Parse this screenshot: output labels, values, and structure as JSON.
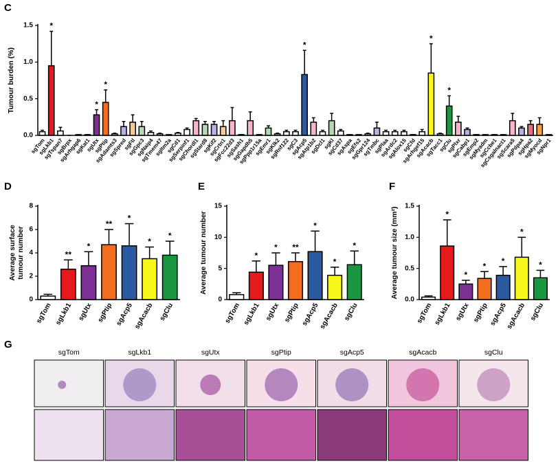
{
  "chart_data": [
    {
      "type": "bar",
      "panel": "C",
      "ylabel": [
        "Tumour burden (%)"
      ],
      "categories": [
        "sgTom",
        "sgLkb1",
        "sgTspan7",
        "sgBrpx",
        "sgArhgap6",
        "sgKat1",
        "sgUtx",
        "sgPtip",
        "sgAdamts3",
        "sgSpred",
        "sgFtl",
        "sgGpc3",
        "sgNaip4",
        "sgTmem47",
        "sgItm2a",
        "sgCd1",
        "sgSerpinf1",
        "sgChordl1",
        "sgStard8",
        "sgKif2",
        "sgCrtn1",
        "sgFcc22d3",
        "sgSash1",
        "sgGapdh5",
        "sgPpp1r15a",
        "sgEmr1",
        "sgKlk2",
        "sgRnf122",
        "sgC3",
        "sgAcp5",
        "sgAtp1b2",
        "sgDcl1",
        "sgKl",
        "sgCd37",
        "sgAspa",
        "sgEfs2",
        "sgGpr124",
        "sgTmbc",
        "sgPlaa",
        "sgArdc2",
        "sgAlox15",
        "sgCfd",
        "sgArhgef15",
        "sgAcacb",
        "sgTacc1",
        "sgClu",
        "sgPlxr",
        "sgCabp1",
        "sgEmp2",
        "sgMyadm",
        "sgCcbe1",
        "sgCsgalnact1",
        "sgScara5",
        "sgPdpa4",
        "sgHpa2",
        "sgMyocd",
        "sgNpr1"
      ],
      "values": [
        0.05,
        0.95,
        0.06,
        0,
        0.01,
        0.01,
        0.28,
        0.45,
        0.02,
        0.12,
        0.18,
        0.12,
        0.04,
        0.02,
        0.01,
        0.03,
        0.08,
        0.2,
        0.15,
        0.15,
        0.12,
        0.2,
        0.01,
        0.2,
        0.01,
        0.1,
        0.02,
        0.05,
        0.05,
        0.83,
        0.18,
        0.05,
        0.2,
        0.06,
        0.01,
        0.01,
        0.02,
        0.1,
        0.05,
        0.05,
        0.05,
        0.01,
        0.05,
        0.85,
        0.02,
        0.4,
        0.18,
        0.08,
        0.01,
        0.01,
        0.01,
        0.01,
        0.2,
        0.1,
        0.15,
        0.15,
        0.01
      ],
      "errors": [
        0.02,
        0.47,
        0.05,
        0,
        0,
        0,
        0.07,
        0.17,
        0.01,
        0.07,
        0.1,
        0.07,
        0.02,
        0.01,
        0,
        0.01,
        0.02,
        0.03,
        0.04,
        0.04,
        0.08,
        0.18,
        0,
        0.12,
        0,
        0.03,
        0.01,
        0.02,
        0.02,
        0.33,
        0.06,
        0.02,
        0.1,
        0.02,
        0,
        0,
        0.01,
        0.08,
        0.02,
        0.02,
        0.02,
        0,
        0.03,
        0.4,
        0.01,
        0.14,
        0.08,
        0.02,
        0,
        0,
        0,
        0,
        0.1,
        0.02,
        0.05,
        0.09,
        0
      ],
      "colors": [
        "#ffffff",
        "#e41a1c",
        "#ffffff",
        "#ffffff",
        "#ffffff",
        "#ffffff",
        "#7b3294",
        "#f46d1f",
        "#ffffff",
        "#b7b0e0",
        "#f7c89a",
        "#b3d9b3",
        "#ffffff",
        "#ffffff",
        "#ffffff",
        "#ffffff",
        "#ffffff",
        "#f4b6c8",
        "#b3d9b3",
        "#b7b0e0",
        "#f7c89a",
        "#f4b6c8",
        "#ffffff",
        "#f4b6c8",
        "#ffffff",
        "#b3d9b3",
        "#ffffff",
        "#ffffff",
        "#ffffff",
        "#2c5aa0",
        "#f4b6c8",
        "#ffffff",
        "#b3d9b3",
        "#ffffff",
        "#ffffff",
        "#ffffff",
        "#ffffff",
        "#b7b0e0",
        "#ffffff",
        "#ffffff",
        "#ffffff",
        "#ffffff",
        "#ffffff",
        "#f7f71a",
        "#ffffff",
        "#1a9641",
        "#f4b6c8",
        "#b7b0e0",
        "#ffffff",
        "#ffffff",
        "#ffffff",
        "#ffffff",
        "#f4b6c8",
        "#b7b0e0",
        "#e0707a",
        "#f7a040",
        "#ffffff"
      ],
      "significance": [
        null,
        "*",
        null,
        null,
        null,
        null,
        "*",
        "*",
        null,
        null,
        null,
        null,
        null,
        null,
        null,
        null,
        null,
        null,
        null,
        null,
        null,
        null,
        null,
        null,
        null,
        null,
        null,
        null,
        null,
        "*",
        null,
        null,
        null,
        null,
        null,
        null,
        null,
        null,
        null,
        null,
        null,
        null,
        null,
        "*",
        null,
        "*",
        null,
        null,
        null,
        null,
        null,
        null,
        null,
        null,
        null,
        null,
        null
      ],
      "ylim": [
        0,
        1.5
      ],
      "yticks": [
        {
          "value": 0,
          "label": "0.0"
        },
        0.5,
        {
          "value": 1,
          "label": "1.0"
        },
        1.5
      ]
    },
    {
      "type": "bar",
      "panel": "D",
      "ylabel": [
        "Average surface",
        "tumour number"
      ],
      "categories": [
        "sgTom",
        "sgLkb1",
        "sgUtx",
        "sgPtip",
        "sgAcp5",
        "sgAcacb",
        "sgClu"
      ],
      "values": [
        0.3,
        2.6,
        2.9,
        4.7,
        4.6,
        3.5,
        3.8
      ],
      "errors": [
        0.15,
        0.8,
        1.2,
        1.3,
        1.9,
        1.0,
        1.2
      ],
      "colors": [
        "#ffffff",
        "#e41a1c",
        "#7b3294",
        "#f46d1f",
        "#2c5aa0",
        "#f7f71a",
        "#1a9641"
      ],
      "significance": [
        null,
        "**",
        "*",
        "**",
        "*",
        "*",
        "*"
      ],
      "ylim": [
        0,
        8
      ],
      "yticks": [
        0,
        2,
        4,
        6,
        8
      ]
    },
    {
      "type": "bar",
      "panel": "E",
      "ylabel": [
        "Average tumour number"
      ],
      "categories": [
        "sgTom",
        "sgLkb1",
        "sgUtx",
        "sgPtip",
        "sgAcp5",
        "sgAcacb",
        "sgClu"
      ],
      "values": [
        0.8,
        4.4,
        5.5,
        6.1,
        7.7,
        3.9,
        5.6
      ],
      "errors": [
        0.3,
        1.8,
        2.0,
        1.4,
        3.3,
        1.3,
        2.2
      ],
      "colors": [
        "#ffffff",
        "#e41a1c",
        "#7b3294",
        "#f46d1f",
        "#2c5aa0",
        "#f7f71a",
        "#1a9641"
      ],
      "significance": [
        null,
        "*",
        "*",
        "**",
        "*",
        "*",
        "*"
      ],
      "ylim": [
        0,
        15
      ],
      "yticks": [
        0,
        5,
        10,
        15
      ]
    },
    {
      "type": "bar",
      "panel": "F",
      "ylabel": [
        "Average tumour size (mm²)"
      ],
      "categories": [
        "sgTom",
        "sgLkb1",
        "sgUtx",
        "sgPtip",
        "sgAcp5",
        "sgAcacb",
        "sgClu"
      ],
      "values": [
        0.04,
        0.86,
        0.25,
        0.34,
        0.39,
        0.68,
        0.35
      ],
      "errors": [
        0.02,
        0.42,
        0.06,
        0.11,
        0.14,
        0.32,
        0.12
      ],
      "colors": [
        "#ffffff",
        "#e41a1c",
        "#7b3294",
        "#f46d1f",
        "#2c5aa0",
        "#f7f71a",
        "#1a9641"
      ],
      "significance": [
        null,
        "*",
        "*",
        "*",
        "*",
        "*",
        "*"
      ],
      "ylim": [
        0,
        1.5
      ],
      "yticks": [
        {
          "value": 0,
          "label": "0.0"
        },
        0.5,
        {
          "value": 1,
          "label": "1.0"
        },
        1.5
      ]
    }
  ],
  "panel_g": {
    "panel": "G",
    "columns": [
      "sgTom",
      "sgLkb1",
      "sgUtx",
      "sgPtip",
      "sgAcp5",
      "sgAcacb",
      "sgClu"
    ]
  }
}
